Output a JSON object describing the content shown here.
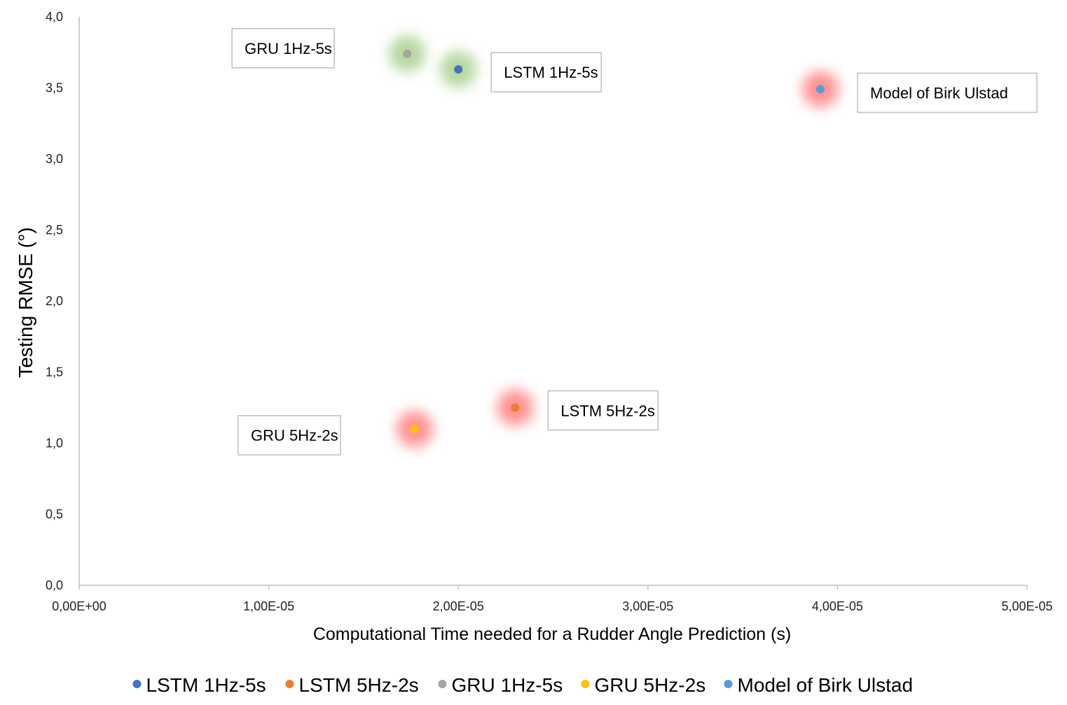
{
  "chart_data": {
    "type": "scatter",
    "xlabel": "Computational Time needed for a Rudder Angle Prediction (s)",
    "ylabel": "Testing RMSE (°)",
    "xlim": [
      0,
      5e-05
    ],
    "ylim": [
      0,
      4.0
    ],
    "x_ticks": [
      0,
      1e-05,
      2e-05,
      3e-05,
      4e-05,
      5e-05
    ],
    "x_tick_labels": [
      "0,00E+00",
      "1,00E-05",
      "2,00E-05",
      "3,00E-05",
      "4,00E-05",
      "5,00E-05"
    ],
    "y_ticks": [
      0,
      0.5,
      1.0,
      1.5,
      2.0,
      2.5,
      3.0,
      3.5,
      4.0
    ],
    "y_tick_labels": [
      "0,0",
      "0,5",
      "1,0",
      "1,5",
      "2,0",
      "2,5",
      "3,0",
      "3,5",
      "4,0"
    ],
    "grid": false,
    "legend_position": "bottom",
    "series": [
      {
        "name": "LSTM 1Hz-5s",
        "color": "#4472c4",
        "glow": "#a9d18e",
        "x": [
          2e-05
        ],
        "y": [
          3.63
        ],
        "annotation": "LSTM 1Hz-5s",
        "annotation_side": "right-upper"
      },
      {
        "name": "LSTM 5Hz-2s",
        "color": "#ed7d31",
        "glow": "#ff8080",
        "x": [
          2.3e-05
        ],
        "y": [
          1.25
        ],
        "annotation": "LSTM 5Hz-2s",
        "annotation_side": "right-upper"
      },
      {
        "name": "GRU 1Hz-5s",
        "color": "#a5a5a5",
        "glow": "#a9d18e",
        "x": [
          1.73e-05
        ],
        "y": [
          3.74
        ],
        "annotation": "GRU 1Hz-5s",
        "annotation_side": "left"
      },
      {
        "name": "GRU 5Hz-2s",
        "color": "#ffc000",
        "glow": "#ff8080",
        "x": [
          1.77e-05
        ],
        "y": [
          1.1
        ],
        "annotation": "GRU 5Hz-2s",
        "annotation_side": "left-lower"
      },
      {
        "name": "Model of Birk Ulstad",
        "color": "#5b9bd5",
        "glow": "#ff8080",
        "x": [
          3.91e-05
        ],
        "y": [
          3.49
        ],
        "annotation": "Model of Birk Ulstad",
        "annotation_side": "right"
      }
    ]
  }
}
